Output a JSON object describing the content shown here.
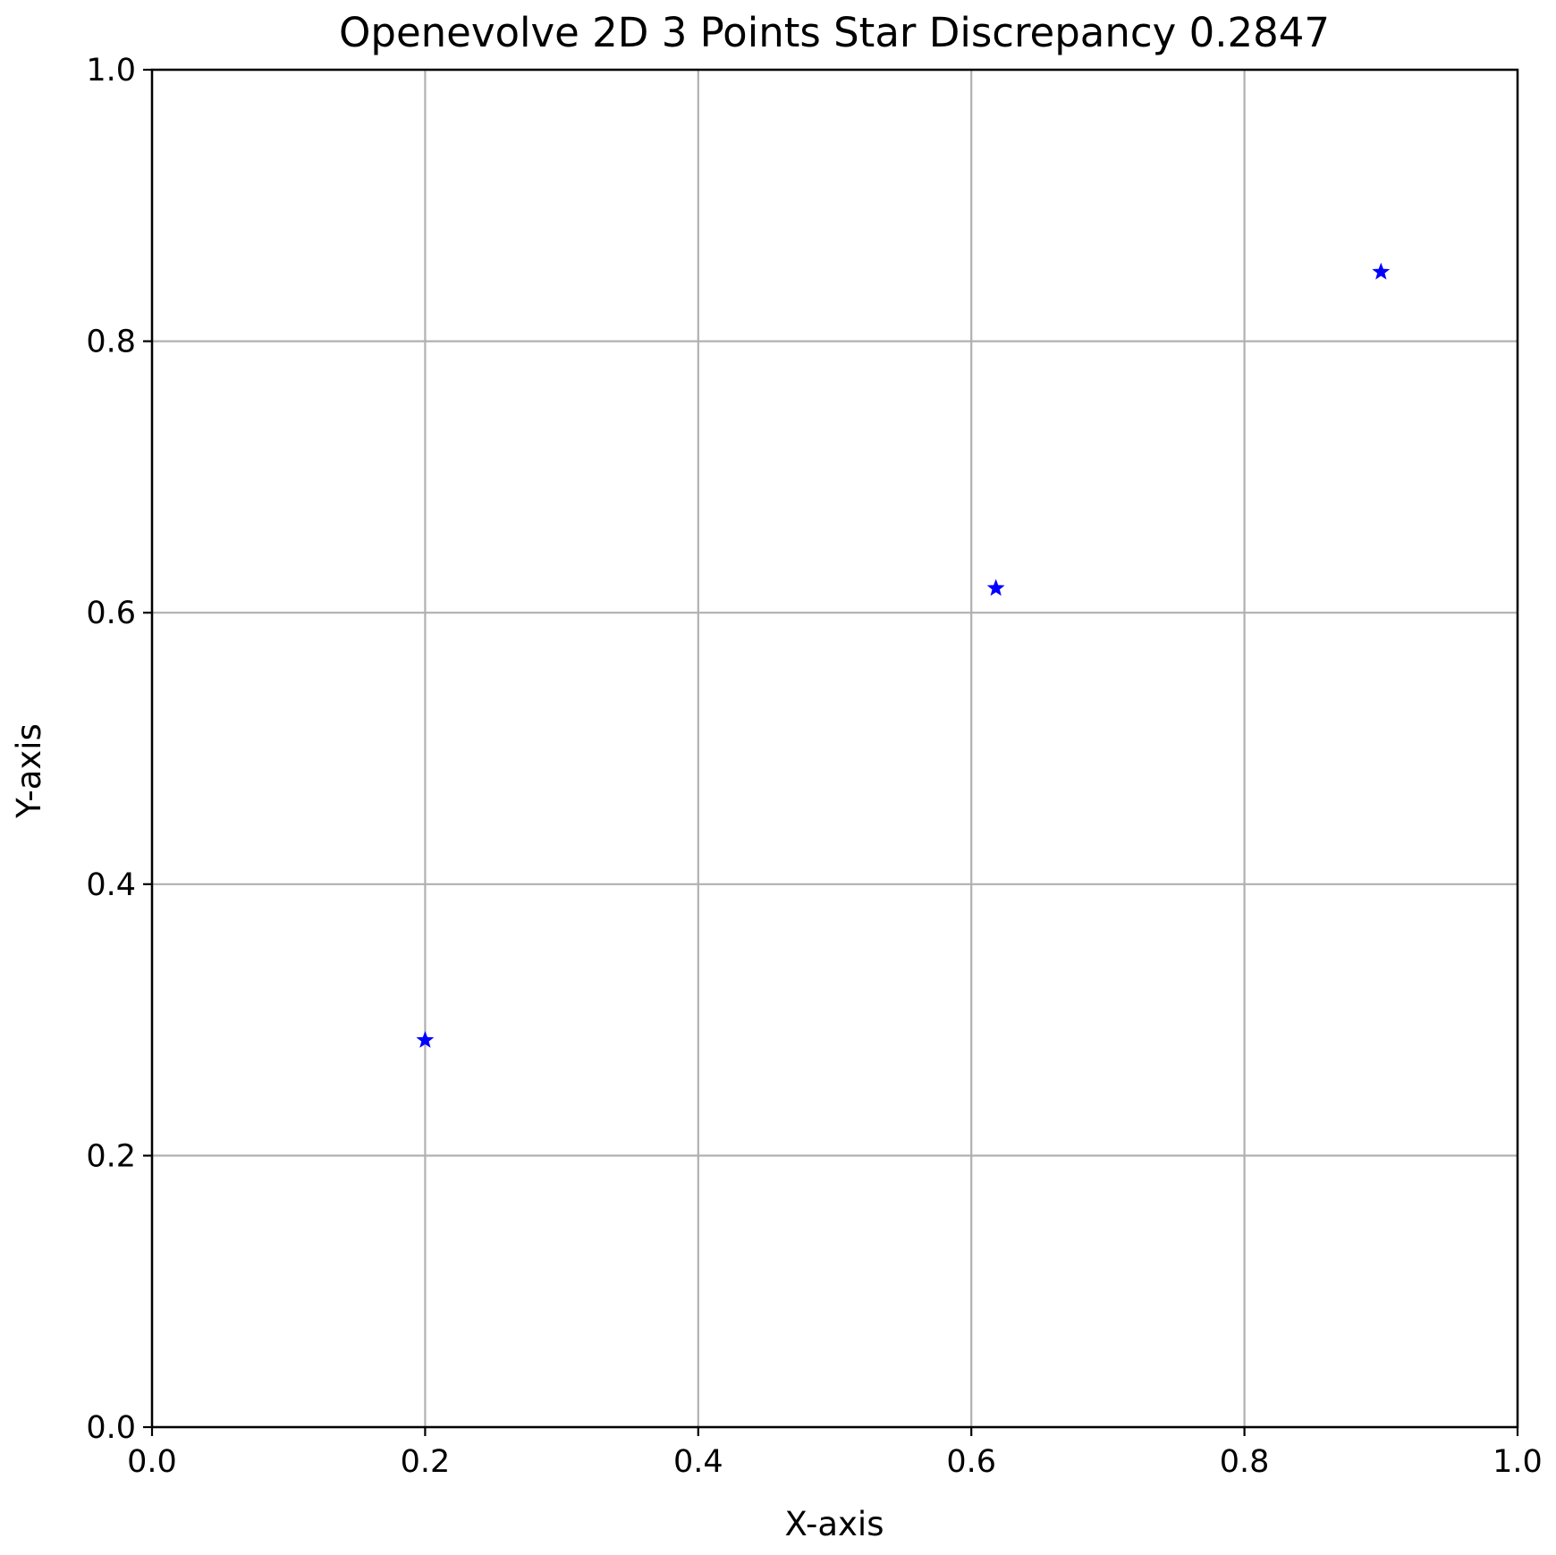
{
  "chart_data": {
    "type": "scatter",
    "title": "Openevolve 2D 3 Points Star Discrepancy 0.2847",
    "xlabel": "X-axis",
    "ylabel": "Y-axis",
    "xlim": [
      0.0,
      1.0
    ],
    "ylim": [
      0.0,
      1.0
    ],
    "x_ticks": [
      "0.0",
      "0.2",
      "0.4",
      "0.6",
      "0.8",
      "1.0"
    ],
    "y_ticks": [
      "0.0",
      "0.2",
      "0.4",
      "0.6",
      "0.8",
      "1.0"
    ],
    "grid": true,
    "marker": "star",
    "series": [
      {
        "color": "#0000ff",
        "x": [
          0.2,
          0.618,
          0.9
        ],
        "y": [
          0.285,
          0.618,
          0.851
        ]
      }
    ]
  }
}
